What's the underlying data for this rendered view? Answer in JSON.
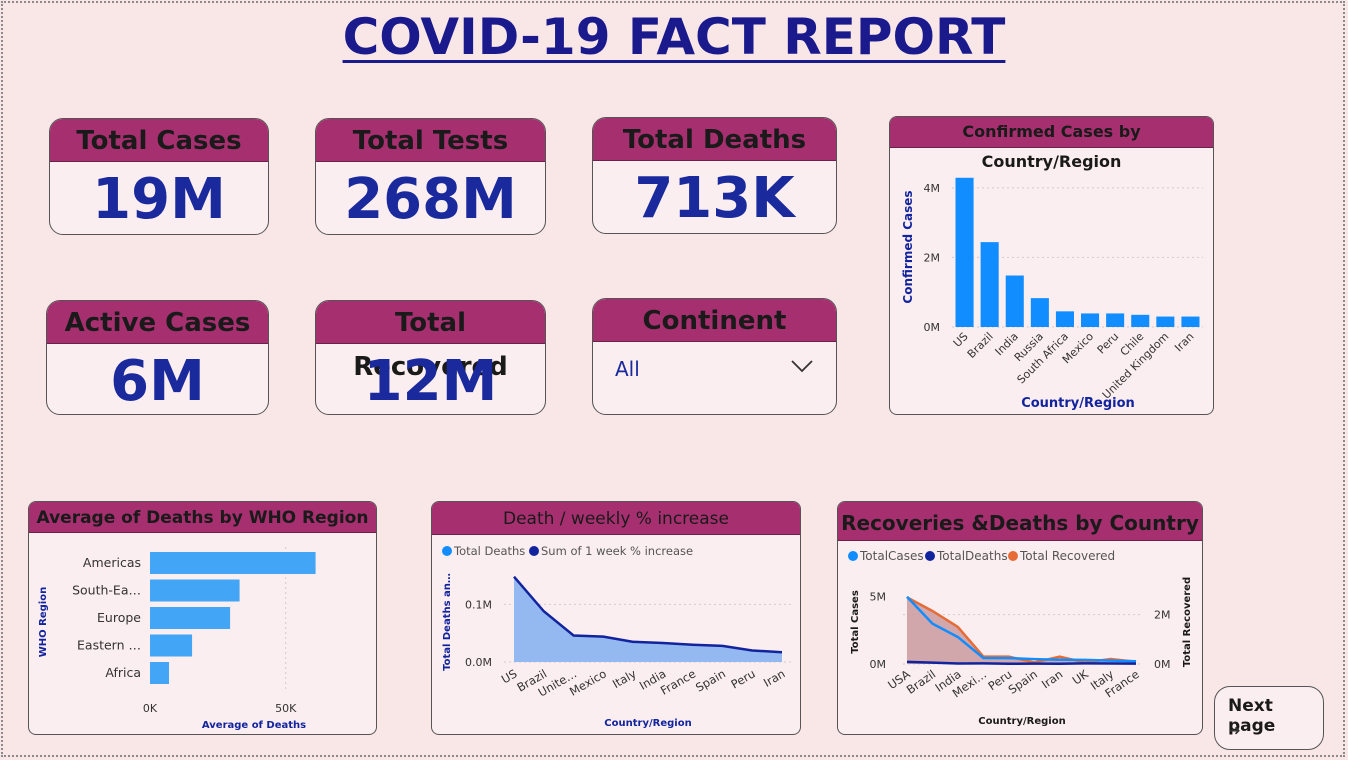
{
  "title": "COVID-19 FACT REPORT",
  "kpis": {
    "total_cases": {
      "label": "Total Cases",
      "value": "19M"
    },
    "total_tests": {
      "label": "Total Tests",
      "value": "268M"
    },
    "total_deaths": {
      "label": "Total Deaths",
      "value": "713K"
    },
    "active_cases": {
      "label": "Active Cases",
      "value": "6M"
    },
    "total_recovered": {
      "label": "Total Recovered",
      "value": "12M"
    }
  },
  "continent_filter": {
    "label": "Continent",
    "value": "All",
    "icon": "chevron-down-icon"
  },
  "next_page": {
    "label": "Next page",
    "icon": "arrow-right-icon"
  },
  "colors": {
    "accent": "#a6306f",
    "kpi_text": "#1a2a9c",
    "bar_blue": "#118dff",
    "dark_blue": "#12239e",
    "orange": "#e66c37",
    "background": "#f9e6e7"
  },
  "chart_data": [
    {
      "type": "bar",
      "title": "Confirmed Cases by Country/Region",
      "xlabel": "Country/Region",
      "ylabel": "Confirmed Cases",
      "categories": [
        "US",
        "Brazil",
        "India",
        "Russia",
        "South Africa",
        "Mexico",
        "Peru",
        "Chile",
        "United Kingdom",
        "Iran"
      ],
      "values": [
        4290000,
        2440000,
        1480000,
        830000,
        450000,
        390000,
        390000,
        350000,
        300000,
        300000
      ],
      "yticks": [
        "0M",
        "2M",
        "4M"
      ],
      "ylim": [
        0,
        4600000
      ],
      "grid": true
    },
    {
      "type": "bar",
      "orientation": "horizontal",
      "title": "Average of Deaths by WHO Region",
      "xlabel": "Average of Deaths",
      "ylabel": "WHO Region",
      "categories": [
        "Americas",
        "South-Ea…",
        "Europe",
        "Eastern …",
        "Africa"
      ],
      "values": [
        61000,
        33000,
        29500,
        15500,
        7000
      ],
      "xticks": [
        "0K",
        "50K"
      ],
      "xlim": [
        0,
        70000
      ],
      "grid": true
    },
    {
      "type": "area",
      "title": "Death / weekly % increase",
      "xlabel": "Country/Region",
      "ylabel": "Total Deaths an…",
      "legend": [
        "Total Deaths",
        "Sum of 1 week % increase"
      ],
      "legend_position": "top-left",
      "categories": [
        "US",
        "Brazil",
        "United Kingdom",
        "Mexico",
        "Italy",
        "India",
        "France",
        "Spain",
        "Peru",
        "Iran"
      ],
      "tick_labels": [
        "US",
        "Brazil",
        "Unite…",
        "Mexico",
        "Italy",
        "India",
        "France",
        "Spain",
        "Peru",
        "Iran"
      ],
      "series": [
        {
          "name": "Total Deaths",
          "values": [
            148000,
            88000,
            46000,
            44000,
            35000,
            33000,
            30000,
            28000,
            20000,
            17000
          ]
        },
        {
          "name": "Sum of 1 week % increase",
          "values": [
            148000,
            88000,
            46000,
            44000,
            35000,
            33000,
            30000,
            28000,
            20000,
            17000
          ]
        }
      ],
      "yticks": [
        "0.0M",
        "0.1M"
      ],
      "ylim": [
        0,
        170000
      ]
    },
    {
      "type": "line",
      "title": "Recoveries &Deaths by Country",
      "xlabel": "Country/Region",
      "ylabel": "Total Cases",
      "y2label": "Total Recovered",
      "legend": [
        "TotalCases",
        "TotalDeaths",
        "Total Recovered"
      ],
      "legend_position": "top-left",
      "categories": [
        "USA",
        "Brazil",
        "India",
        "Mexi…",
        "Peru",
        "Spain",
        "Iran",
        "UK",
        "Italy",
        "France"
      ],
      "series": [
        {
          "name": "TotalCases",
          "axis": "left",
          "values": [
            5000000,
            3000000,
            2000000,
            450000,
            440000,
            360000,
            320000,
            310000,
            250000,
            200000
          ]
        },
        {
          "name": "TotalDeaths",
          "axis": "left",
          "values": [
            160000,
            100000,
            40000,
            50000,
            20000,
            28000,
            18000,
            46000,
            35000,
            30000
          ]
        },
        {
          "name": "Total Recovered",
          "axis": "right",
          "values": [
            2700000,
            2150000,
            1500000,
            300000,
            300000,
            60000,
            300000,
            60000,
            200000,
            90000
          ]
        }
      ],
      "yticks_left": [
        "0M",
        "5M"
      ],
      "yticks_right": [
        "0M",
        "2M"
      ],
      "ylim_left": [
        0,
        5500000
      ],
      "ylim_right": [
        0,
        3000000
      ]
    }
  ]
}
